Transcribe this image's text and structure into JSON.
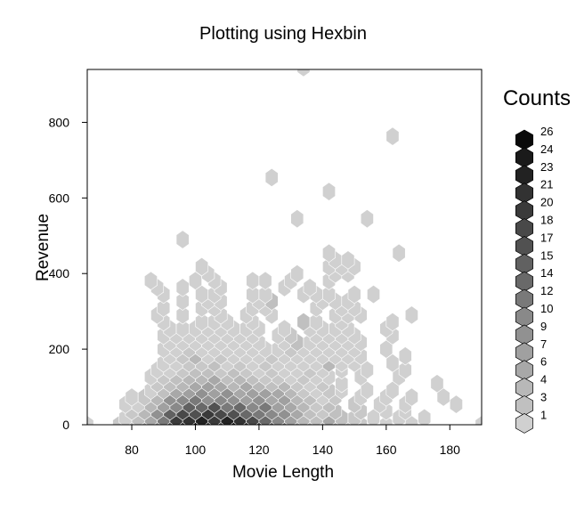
{
  "chart_data": {
    "type": "heatmap",
    "subtype": "hexbin",
    "title": "Plotting using Hexbin",
    "xlabel": "Movie Length",
    "ylabel": "Revenue",
    "xlim": [
      66,
      190
    ],
    "ylim": [
      0,
      940
    ],
    "x_ticks": [
      80,
      100,
      120,
      140,
      160,
      180
    ],
    "y_ticks": [
      0,
      200,
      400,
      600,
      800
    ],
    "grid": false,
    "legend": {
      "title": "Counts",
      "placement": "right",
      "levels": [
        26,
        24,
        23,
        21,
        20,
        18,
        17,
        15,
        14,
        12,
        10,
        9,
        7,
        6,
        4,
        3,
        1
      ]
    },
    "colors": {
      "low": "#d0d0d0",
      "high": "#0a0a0a",
      "border": "#ffffff"
    },
    "hex_width_x": 4.0,
    "hex_row_height_y": 36.3,
    "bins": [
      [
        66,
        0,
        1
      ],
      [
        76,
        0,
        2
      ],
      [
        80,
        0,
        3
      ],
      [
        84,
        0,
        6
      ],
      [
        88,
        0,
        9
      ],
      [
        92,
        0,
        17
      ],
      [
        96,
        0,
        23
      ],
      [
        100,
        0,
        26
      ],
      [
        104,
        0,
        23
      ],
      [
        108,
        0,
        20
      ],
      [
        112,
        0,
        26
      ],
      [
        116,
        0,
        23
      ],
      [
        120,
        0,
        20
      ],
      [
        124,
        0,
        15
      ],
      [
        128,
        0,
        12
      ],
      [
        132,
        0,
        6
      ],
      [
        136,
        0,
        4
      ],
      [
        140,
        0,
        3
      ],
      [
        144,
        0,
        4
      ],
      [
        148,
        0,
        2
      ],
      [
        152,
        0,
        2
      ],
      [
        160,
        0,
        1
      ],
      [
        168,
        0,
        1
      ],
      [
        190,
        0,
        1
      ],
      [
        78,
        18,
        1
      ],
      [
        82,
        18,
        3
      ],
      [
        86,
        18,
        6
      ],
      [
        90,
        18,
        12
      ],
      [
        94,
        18,
        20
      ],
      [
        98,
        18,
        21
      ],
      [
        102,
        18,
        23
      ],
      [
        106,
        18,
        20
      ],
      [
        110,
        18,
        23
      ],
      [
        114,
        18,
        21
      ],
      [
        118,
        18,
        18
      ],
      [
        122,
        18,
        14
      ],
      [
        126,
        18,
        10
      ],
      [
        130,
        18,
        7
      ],
      [
        134,
        18,
        4
      ],
      [
        138,
        18,
        3
      ],
      [
        142,
        18,
        6
      ],
      [
        146,
        18,
        3
      ],
      [
        150,
        18,
        2
      ],
      [
        156,
        18,
        1
      ],
      [
        164,
        18,
        1
      ],
      [
        172,
        18,
        1
      ],
      [
        80,
        36,
        2
      ],
      [
        84,
        36,
        4
      ],
      [
        88,
        36,
        9
      ],
      [
        92,
        36,
        15
      ],
      [
        96,
        36,
        18
      ],
      [
        100,
        36,
        17
      ],
      [
        104,
        36,
        20
      ],
      [
        108,
        36,
        18
      ],
      [
        112,
        36,
        17
      ],
      [
        116,
        36,
        14
      ],
      [
        120,
        36,
        12
      ],
      [
        124,
        36,
        10
      ],
      [
        128,
        36,
        9
      ],
      [
        132,
        36,
        6
      ],
      [
        136,
        36,
        3
      ],
      [
        140,
        36,
        2
      ],
      [
        144,
        36,
        3
      ],
      [
        152,
        36,
        2
      ],
      [
        160,
        36,
        1
      ],
      [
        166,
        36,
        1
      ],
      [
        78,
        54,
        1
      ],
      [
        82,
        54,
        1
      ],
      [
        86,
        54,
        4
      ],
      [
        90,
        54,
        7
      ],
      [
        94,
        54,
        10
      ],
      [
        98,
        54,
        15
      ],
      [
        102,
        54,
        14
      ],
      [
        106,
        54,
        17
      ],
      [
        110,
        54,
        12
      ],
      [
        114,
        54,
        14
      ],
      [
        118,
        54,
        10
      ],
      [
        122,
        54,
        12
      ],
      [
        126,
        54,
        7
      ],
      [
        130,
        54,
        6
      ],
      [
        134,
        54,
        4
      ],
      [
        138,
        54,
        2
      ],
      [
        142,
        54,
        3
      ],
      [
        150,
        54,
        2
      ],
      [
        158,
        54,
        1
      ],
      [
        166,
        54,
        1
      ],
      [
        182,
        54,
        1
      ],
      [
        80,
        73,
        1
      ],
      [
        84,
        73,
        2
      ],
      [
        88,
        73,
        4
      ],
      [
        92,
        73,
        9
      ],
      [
        96,
        73,
        10
      ],
      [
        100,
        73,
        12
      ],
      [
        104,
        73,
        9
      ],
      [
        108,
        73,
        10
      ],
      [
        112,
        73,
        9
      ],
      [
        116,
        73,
        7
      ],
      [
        120,
        73,
        9
      ],
      [
        124,
        73,
        6
      ],
      [
        128,
        73,
        7
      ],
      [
        132,
        73,
        4
      ],
      [
        136,
        73,
        3
      ],
      [
        140,
        73,
        1
      ],
      [
        144,
        73,
        2
      ],
      [
        152,
        73,
        1
      ],
      [
        160,
        73,
        1
      ],
      [
        168,
        73,
        1
      ],
      [
        178,
        73,
        1
      ],
      [
        86,
        91,
        1
      ],
      [
        90,
        91,
        3
      ],
      [
        94,
        91,
        6
      ],
      [
        98,
        91,
        7
      ],
      [
        102,
        91,
        9
      ],
      [
        106,
        91,
        7
      ],
      [
        110,
        91,
        9
      ],
      [
        114,
        91,
        6
      ],
      [
        118,
        91,
        7
      ],
      [
        122,
        91,
        7
      ],
      [
        126,
        91,
        6
      ],
      [
        130,
        91,
        4
      ],
      [
        134,
        91,
        2
      ],
      [
        138,
        91,
        1
      ],
      [
        142,
        91,
        2
      ],
      [
        146,
        91,
        1
      ],
      [
        154,
        91,
        1
      ],
      [
        162,
        91,
        1
      ],
      [
        88,
        109,
        2
      ],
      [
        92,
        109,
        3
      ],
      [
        96,
        109,
        4
      ],
      [
        100,
        109,
        6
      ],
      [
        104,
        109,
        7
      ],
      [
        108,
        109,
        6
      ],
      [
        112,
        109,
        4
      ],
      [
        116,
        109,
        6
      ],
      [
        120,
        109,
        4
      ],
      [
        124,
        109,
        3
      ],
      [
        128,
        109,
        4
      ],
      [
        132,
        109,
        2
      ],
      [
        136,
        109,
        1
      ],
      [
        140,
        109,
        2
      ],
      [
        146,
        109,
        1
      ],
      [
        176,
        109,
        1
      ],
      [
        86,
        127,
        1
      ],
      [
        90,
        127,
        2
      ],
      [
        94,
        127,
        3
      ],
      [
        98,
        127,
        4
      ],
      [
        102,
        127,
        4
      ],
      [
        106,
        127,
        6
      ],
      [
        110,
        127,
        3
      ],
      [
        114,
        127,
        4
      ],
      [
        118,
        127,
        3
      ],
      [
        122,
        127,
        2
      ],
      [
        126,
        127,
        2
      ],
      [
        130,
        127,
        1
      ],
      [
        134,
        127,
        2
      ],
      [
        138,
        127,
        1
      ],
      [
        142,
        127,
        1
      ],
      [
        152,
        127,
        1
      ],
      [
        164,
        127,
        1
      ],
      [
        88,
        145,
        1
      ],
      [
        92,
        145,
        1
      ],
      [
        96,
        145,
        2
      ],
      [
        100,
        145,
        3
      ],
      [
        104,
        145,
        3
      ],
      [
        108,
        145,
        2
      ],
      [
        112,
        145,
        3
      ],
      [
        116,
        145,
        2
      ],
      [
        120,
        145,
        1
      ],
      [
        124,
        145,
        2
      ],
      [
        128,
        145,
        1
      ],
      [
        132,
        145,
        1
      ],
      [
        136,
        145,
        2
      ],
      [
        140,
        145,
        1
      ],
      [
        146,
        145,
        1
      ],
      [
        154,
        145,
        1
      ],
      [
        166,
        145,
        1
      ],
      [
        90,
        163,
        1
      ],
      [
        94,
        163,
        1
      ],
      [
        98,
        163,
        2
      ],
      [
        102,
        163,
        2
      ],
      [
        106,
        163,
        3
      ],
      [
        110,
        163,
        1
      ],
      [
        114,
        163,
        2
      ],
      [
        118,
        163,
        1
      ],
      [
        122,
        163,
        2
      ],
      [
        126,
        163,
        1
      ],
      [
        130,
        163,
        1
      ],
      [
        134,
        163,
        1
      ],
      [
        138,
        163,
        1
      ],
      [
        142,
        163,
        4
      ],
      [
        146,
        163,
        1
      ],
      [
        150,
        163,
        1
      ],
      [
        162,
        163,
        1
      ],
      [
        92,
        182,
        1
      ],
      [
        96,
        182,
        2
      ],
      [
        100,
        182,
        4
      ],
      [
        104,
        182,
        1
      ],
      [
        108,
        182,
        2
      ],
      [
        112,
        182,
        1
      ],
      [
        116,
        182,
        1
      ],
      [
        120,
        182,
        1
      ],
      [
        124,
        182,
        2
      ],
      [
        128,
        182,
        1
      ],
      [
        132,
        182,
        1
      ],
      [
        136,
        182,
        1
      ],
      [
        140,
        182,
        1
      ],
      [
        144,
        182,
        1
      ],
      [
        148,
        182,
        1
      ],
      [
        152,
        182,
        1
      ],
      [
        166,
        182,
        1
      ],
      [
        90,
        200,
        1
      ],
      [
        94,
        200,
        1
      ],
      [
        98,
        200,
        2
      ],
      [
        102,
        200,
        1
      ],
      [
        106,
        200,
        1
      ],
      [
        110,
        200,
        1
      ],
      [
        114,
        200,
        1
      ],
      [
        118,
        200,
        1
      ],
      [
        122,
        200,
        1
      ],
      [
        126,
        200,
        1
      ],
      [
        130,
        200,
        2
      ],
      [
        134,
        200,
        1
      ],
      [
        138,
        200,
        1
      ],
      [
        142,
        200,
        1
      ],
      [
        146,
        200,
        1
      ],
      [
        150,
        200,
        1
      ],
      [
        160,
        200,
        1
      ],
      [
        92,
        218,
        1
      ],
      [
        96,
        218,
        1
      ],
      [
        100,
        218,
        1
      ],
      [
        104,
        218,
        1
      ],
      [
        108,
        218,
        1
      ],
      [
        112,
        218,
        1
      ],
      [
        116,
        218,
        1
      ],
      [
        120,
        218,
        1
      ],
      [
        128,
        218,
        1
      ],
      [
        132,
        218,
        3
      ],
      [
        136,
        218,
        1
      ],
      [
        140,
        218,
        1
      ],
      [
        144,
        218,
        1
      ],
      [
        148,
        218,
        1
      ],
      [
        152,
        218,
        1
      ],
      [
        90,
        236,
        1
      ],
      [
        94,
        236,
        1
      ],
      [
        98,
        236,
        1
      ],
      [
        102,
        236,
        1
      ],
      [
        106,
        236,
        1
      ],
      [
        110,
        236,
        1
      ],
      [
        114,
        236,
        1
      ],
      [
        118,
        236,
        1
      ],
      [
        126,
        236,
        1
      ],
      [
        130,
        236,
        2
      ],
      [
        138,
        236,
        1
      ],
      [
        142,
        236,
        1
      ],
      [
        146,
        236,
        1
      ],
      [
        150,
        236,
        1
      ],
      [
        162,
        236,
        1
      ],
      [
        92,
        254,
        1
      ],
      [
        96,
        254,
        1
      ],
      [
        100,
        254,
        1
      ],
      [
        104,
        254,
        1
      ],
      [
        108,
        254,
        1
      ],
      [
        112,
        254,
        1
      ],
      [
        116,
        254,
        1
      ],
      [
        120,
        254,
        1
      ],
      [
        128,
        254,
        1
      ],
      [
        136,
        254,
        1
      ],
      [
        140,
        254,
        1
      ],
      [
        144,
        254,
        1
      ],
      [
        148,
        254,
        1
      ],
      [
        160,
        254,
        1
      ],
      [
        90,
        272,
        1
      ],
      [
        102,
        272,
        1
      ],
      [
        106,
        272,
        1
      ],
      [
        110,
        272,
        1
      ],
      [
        118,
        272,
        1
      ],
      [
        134,
        272,
        3
      ],
      [
        138,
        272,
        1
      ],
      [
        146,
        272,
        1
      ],
      [
        162,
        272,
        1
      ],
      [
        88,
        290,
        1
      ],
      [
        96,
        290,
        1
      ],
      [
        108,
        290,
        1
      ],
      [
        116,
        290,
        1
      ],
      [
        124,
        290,
        1
      ],
      [
        144,
        290,
        1
      ],
      [
        148,
        290,
        1
      ],
      [
        152,
        290,
        1
      ],
      [
        168,
        290,
        1
      ],
      [
        90,
        309,
        1
      ],
      [
        102,
        309,
        1
      ],
      [
        106,
        309,
        1
      ],
      [
        118,
        309,
        1
      ],
      [
        122,
        309,
        1
      ],
      [
        138,
        309,
        1
      ],
      [
        146,
        309,
        1
      ],
      [
        150,
        309,
        1
      ],
      [
        96,
        327,
        1
      ],
      [
        104,
        327,
        1
      ],
      [
        108,
        327,
        1
      ],
      [
        120,
        327,
        1
      ],
      [
        124,
        327,
        3
      ],
      [
        140,
        327,
        1
      ],
      [
        144,
        327,
        1
      ],
      [
        148,
        327,
        1
      ],
      [
        90,
        345,
        1
      ],
      [
        102,
        345,
        1
      ],
      [
        106,
        345,
        1
      ],
      [
        118,
        345,
        1
      ],
      [
        122,
        345,
        1
      ],
      [
        134,
        345,
        1
      ],
      [
        138,
        345,
        1
      ],
      [
        142,
        345,
        1
      ],
      [
        150,
        345,
        1
      ],
      [
        156,
        345,
        1
      ],
      [
        88,
        363,
        1
      ],
      [
        96,
        363,
        1
      ],
      [
        108,
        363,
        1
      ],
      [
        128,
        363,
        1
      ],
      [
        136,
        363,
        1
      ],
      [
        86,
        381,
        1
      ],
      [
        100,
        381,
        1
      ],
      [
        106,
        381,
        1
      ],
      [
        118,
        381,
        1
      ],
      [
        122,
        381,
        1
      ],
      [
        130,
        381,
        1
      ],
      [
        142,
        381,
        1
      ],
      [
        104,
        399,
        1
      ],
      [
        132,
        399,
        1
      ],
      [
        144,
        399,
        1
      ],
      [
        148,
        399,
        1
      ],
      [
        102,
        418,
        1
      ],
      [
        142,
        418,
        1
      ],
      [
        146,
        418,
        1
      ],
      [
        150,
        418,
        1
      ],
      [
        144,
        436,
        1
      ],
      [
        148,
        436,
        1
      ],
      [
        142,
        454,
        1
      ],
      [
        164,
        454,
        1
      ],
      [
        96,
        490,
        1
      ],
      [
        132,
        545,
        1
      ],
      [
        154,
        545,
        1
      ],
      [
        142,
        617,
        1
      ],
      [
        124,
        654,
        1
      ],
      [
        162,
        763,
        1
      ],
      [
        134,
        945,
        1
      ]
    ]
  }
}
